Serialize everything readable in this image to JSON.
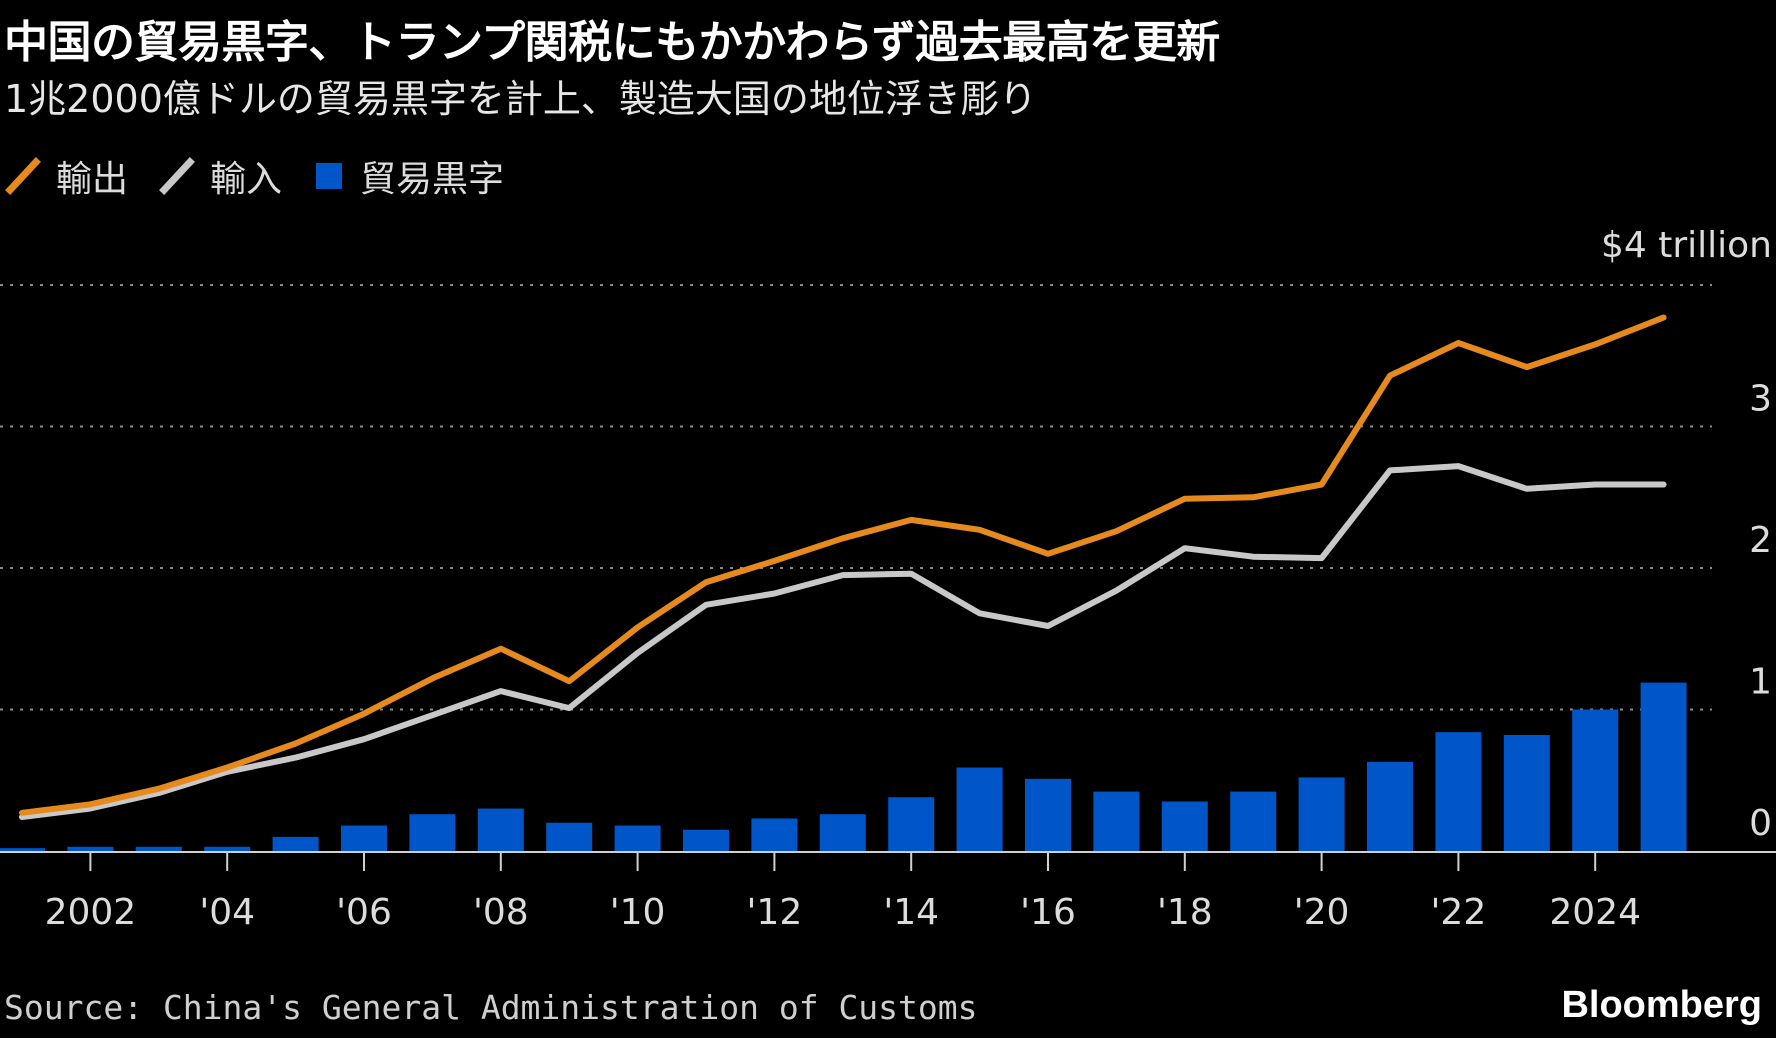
{
  "header": {
    "title": "中国の貿易黒字、トランプ関税にもかかわらず過去最高を更新",
    "subtitle": "1兆2000億ドルの貿易黒字を計上、製造大国の地位浮き彫り"
  },
  "legend": {
    "items": [
      {
        "label": "輸出",
        "kind": "line",
        "color": "#e68a1e"
      },
      {
        "label": "輸入",
        "kind": "line",
        "color": "#c8c8c8"
      },
      {
        "label": "貿易黒字",
        "kind": "square",
        "color": "#0055c8"
      }
    ]
  },
  "footer": {
    "source": "Source: China's General Administration of Customs",
    "brand": "Bloomberg"
  },
  "chart_data": {
    "type": "bar",
    "title": "中国の貿易黒字、トランプ関税にもかかわらず過去最高を更新",
    "subtitle": "1兆2000億ドルの貿易黒字を計上、製造大国の地位浮き彫り",
    "x": [
      2001,
      2002,
      2003,
      2004,
      2005,
      2006,
      2007,
      2008,
      2009,
      2010,
      2011,
      2012,
      2013,
      2014,
      2015,
      2016,
      2017,
      2018,
      2019,
      2020,
      2021,
      2022,
      2023,
      2024,
      2025
    ],
    "x_ticks": [
      {
        "value": 2002,
        "label": "2002"
      },
      {
        "value": 2004,
        "label": "'04"
      },
      {
        "value": 2006,
        "label": "'06"
      },
      {
        "value": 2008,
        "label": "'08"
      },
      {
        "value": 2010,
        "label": "'10"
      },
      {
        "value": 2012,
        "label": "'12"
      },
      {
        "value": 2014,
        "label": "'14"
      },
      {
        "value": 2016,
        "label": "'16"
      },
      {
        "value": 2018,
        "label": "'18"
      },
      {
        "value": 2020,
        "label": "'20"
      },
      {
        "value": 2022,
        "label": "'22"
      },
      {
        "value": 2024,
        "label": "2024"
      }
    ],
    "y_ticks": [
      {
        "value": 0,
        "label": "0"
      },
      {
        "value": 1,
        "label": "1"
      },
      {
        "value": 2,
        "label": "2"
      },
      {
        "value": 3,
        "label": "3"
      },
      {
        "value": 4,
        "label": "$4 trillion"
      }
    ],
    "ylim": [
      0,
      4
    ],
    "ylabel": "",
    "xlabel": "",
    "grid": true,
    "series": [
      {
        "name": "輸出",
        "type": "line",
        "color": "#e68a1e",
        "values": [
          0.27,
          0.33,
          0.44,
          0.59,
          0.76,
          0.97,
          1.22,
          1.43,
          1.2,
          1.58,
          1.9,
          2.05,
          2.21,
          2.34,
          2.27,
          2.1,
          2.26,
          2.49,
          2.5,
          2.59,
          3.36,
          3.59,
          3.42,
          3.58,
          3.77
        ]
      },
      {
        "name": "輸入",
        "type": "line",
        "color": "#c8c8c8",
        "values": [
          0.24,
          0.3,
          0.41,
          0.56,
          0.66,
          0.79,
          0.96,
          1.13,
          1.01,
          1.4,
          1.74,
          1.82,
          1.95,
          1.96,
          1.68,
          1.59,
          1.84,
          2.14,
          2.08,
          2.07,
          2.69,
          2.72,
          2.56,
          2.59,
          2.59
        ]
      },
      {
        "name": "貿易黒字",
        "type": "bar",
        "color": "#0055c8",
        "values": [
          0.02,
          0.03,
          0.03,
          0.03,
          0.1,
          0.18,
          0.26,
          0.3,
          0.2,
          0.18,
          0.15,
          0.23,
          0.26,
          0.38,
          0.59,
          0.51,
          0.42,
          0.35,
          0.42,
          0.52,
          0.63,
          0.84,
          0.82,
          1.0,
          1.19
        ]
      }
    ]
  }
}
